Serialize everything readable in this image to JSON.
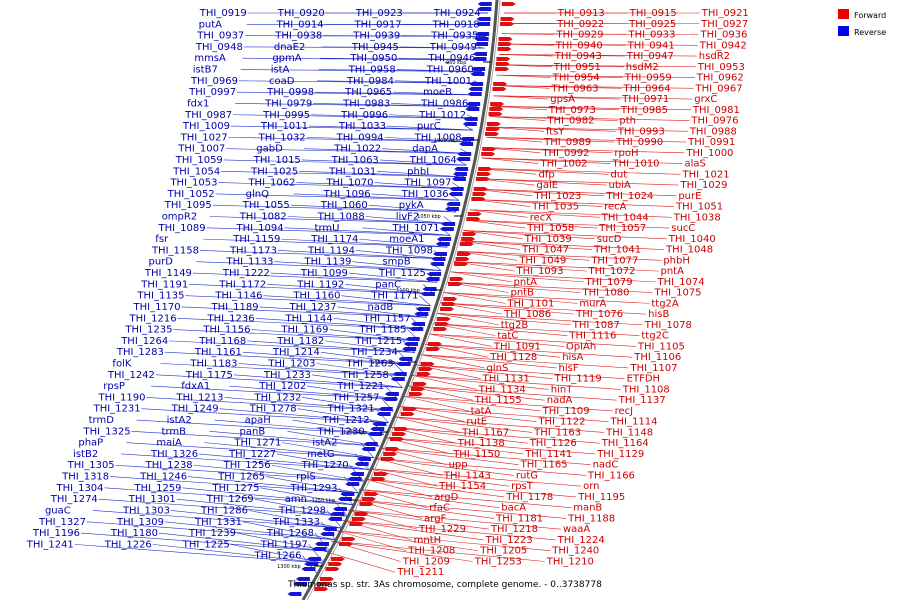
{
  "caption": "Thiomonas sp. str. 3As chromosome, complete genome. - 0..3738778",
  "legend": {
    "forward_label": "Forward",
    "reverse_label": "Reverse",
    "forward_color": "#ee0000",
    "reverse_color": "#0000ee"
  },
  "ticks": [
    "950 kbp",
    "1000 kbp",
    "1050 kbp",
    "1100 kbp",
    "1150 kbp",
    "1200 kbp",
    "1250 kbp",
    "1300 kbp"
  ],
  "forward_labels": [
    "THI_0913",
    "THI_0915",
    "THI_0921",
    "THI_0922",
    "THI_0925",
    "THI_0927",
    "THI_0929",
    "THI_0933",
    "THI_0936",
    "THI_0940",
    "THI_0941",
    "THI_0942",
    "THI_0943",
    "THI_0947",
    "hsdR2",
    "THI_0951",
    "hsdM2",
    "THI_0953",
    "THI_0954",
    "THI_0959",
    "THI_0962",
    "THI_0963",
    "THI_0964",
    "THI_0967",
    "gpsA",
    "THI_0971",
    "grxC",
    "THI_0973",
    "THI_0985",
    "THI_0981",
    "THI_0982",
    "pth",
    "THI_0976",
    "ftsY",
    "THI_0993",
    "THI_0988",
    "THI_0989",
    "THI_0990",
    "THI_0991",
    "THI_0992",
    "rpoH",
    "THI_1000",
    "THI_1002",
    "THI_1010",
    "alaS",
    "dfp",
    "dut",
    "THI_1021",
    "galE",
    "ubiA",
    "THI_1029",
    "THI_1023",
    "THI_1024",
    "purE",
    "THI_1035",
    "recA",
    "THI_1051",
    "recX",
    "THI_1044",
    "THI_1038",
    "THI_1058",
    "THI_1057",
    "sucC",
    "THI_1039",
    "sucD",
    "THI_1040",
    "THI_1047",
    "THI_1041",
    "THI_1048",
    "THI_1049",
    "THI_1077",
    "phbH",
    "THI_1093",
    "THI_1072",
    "pntA",
    "pntA",
    "THI_1079",
    "THI_1074",
    "pntB",
    "THI_1080",
    "THI_1075",
    "THI_1101",
    "murA",
    "ttg2A",
    "THI_1086",
    "THI_1076",
    "hisB",
    "ttg2B",
    "THI_1087",
    "THI_1078",
    "tatC",
    "THI_1116",
    "ttg2C",
    "THI_1091",
    "OpIAh",
    "THI_1105",
    "THI_1128",
    "hisA",
    "THI_1106",
    "glnS",
    "hisF",
    "THI_1107",
    "THI_1131",
    "THI_1119",
    "ETFDH",
    "THI_1134",
    "hinT",
    "THI_1108",
    "THI_1155",
    "nadA",
    "THI_1137",
    "tatA",
    "THI_1109",
    "recJ",
    "rutE",
    "THI_1122",
    "THI_1114",
    "THI_1167",
    "THI_1163",
    "THI_1148",
    "THI_1138",
    "THI_1126",
    "THI_1164",
    "THI_1150",
    "THI_1141",
    "THI_1129",
    "upp",
    "THI_1165",
    "nadC",
    "THI_1143",
    "rutG",
    "THI_1166",
    "THI_1154",
    "rpsT",
    "orn",
    "argD",
    "THI_1178",
    "THI_1195",
    "rfaC",
    "bacA",
    "manB",
    "argF",
    "THI_1181",
    "THI_1188",
    "THI_1229",
    "THI_1218",
    "waaA",
    "mntH",
    "THI_1223",
    "THI_1224",
    "THI_1208",
    "THI_1205",
    "THI_1240",
    "THI_1209",
    "THI_1253",
    "THI_1210",
    "THI_1211"
  ],
  "reverse_labels": [
    "THI_0924",
    "THI_0923",
    "THI_0920",
    "THI_0919",
    "THI_0918",
    "THI_0917",
    "THI_0914",
    "putA",
    "THI_0935",
    "THI_0939",
    "THI_0938",
    "THI_0937",
    "THI_0949",
    "THI_0945",
    "dnaE2",
    "THI_0948",
    "THI_0946",
    "THI_0950",
    "gpmA",
    "mmsA",
    "THI_0960",
    "THI_0958",
    "istA",
    "istB7",
    "THI_1001",
    "THI_0984",
    "coaD",
    "THI_0969",
    "moeB",
    "THI_0965",
    "THI_0998",
    "THI_0997",
    "THI_0986",
    "THI_0983",
    "THI_0979",
    "fdx1",
    "THI_1012",
    "THI_0996",
    "THI_0995",
    "THI_0987",
    "purC",
    "THI_1033",
    "THI_1011",
    "THI_1009",
    "THI_1008",
    "THI_0994",
    "THI_1032",
    "THI_1027",
    "dapA",
    "THI_1022",
    "gabD",
    "THI_1007",
    "THI_1064",
    "THI_1063",
    "THI_1015",
    "THI_1059",
    "phbI",
    "THI_1031",
    "THI_1025",
    "THI_1054",
    "THI_1097",
    "THI_1070",
    "THI_1062",
    "THI_1053",
    "THI_1036",
    "THI_1096",
    "glnQ",
    "THI_1052",
    "pykA",
    "THI_1060",
    "THI_1055",
    "THI_1095",
    "livF2",
    "THI_1088",
    "THI_1082",
    "ompR2",
    "THI_1071",
    "trmU",
    "THI_1094",
    "THI_1089",
    "moeA1",
    "THI_1174",
    "THI_1159",
    "fsr",
    "THI_1098",
    "THI_1194",
    "THI_1173",
    "THI_1158",
    "smpB",
    "THI_1139",
    "THI_1133",
    "purD",
    "THI_1125",
    "THI_1099",
    "THI_1222",
    "THI_1149",
    "panC",
    "THI_1192",
    "THI_1172",
    "THI_1191",
    "THI_1171",
    "THI_1160",
    "THI_1146",
    "THI_1135",
    "nadB",
    "THI_1237",
    "THI_1189",
    "THI_1170",
    "THI_1157",
    "THI_1144",
    "THI_1236",
    "THI_1216",
    "THI_1185",
    "THI_1169",
    "THI_1156",
    "THI_1235",
    "THI_1215",
    "THI_1182",
    "THI_1168",
    "THI_1264",
    "THI_1234",
    "THI_1214",
    "THI_1161",
    "THI_1283",
    "THI_1263",
    "THI_1203",
    "THI_1183",
    "folK",
    "THI_1258",
    "THI_1233",
    "THI_1175",
    "THI_1242",
    "THI_1221",
    "THI_1202",
    "fdxA1",
    "rpsP",
    "THI_1257",
    "THI_1232",
    "THI_1213",
    "THI_1190",
    "THI_1321",
    "THI_1278",
    "THI_1249",
    "THI_1231",
    "THI_1212",
    "apaH",
    "istA2",
    "trmD",
    "THI_1230",
    "panB",
    "trmB",
    "THI_1325",
    "istA2",
    "THI_1271",
    "maiA",
    "phaP",
    "metG",
    "THI_1227",
    "THI_1326",
    "istB2",
    "THI_1270",
    "THI_1256",
    "THI_1238",
    "THI_1305",
    "rplS",
    "THI_1265",
    "THI_1246",
    "THI_1318",
    "THI_1293",
    "THI_1275",
    "THI_1259",
    "THI_1304",
    "amn",
    "THI_1269",
    "THI_1301",
    "THI_1274",
    "THI_1298",
    "THI_1286",
    "THI_1303",
    "guaC",
    "THI_1333",
    "THI_1331",
    "THI_1309",
    "THI_1327",
    "THI_1268",
    "THI_1239",
    "THI_1180",
    "THI_1196",
    "THI_1197",
    "THI_1225",
    "THI_1226",
    "THI_1241",
    "THI_1266"
  ]
}
